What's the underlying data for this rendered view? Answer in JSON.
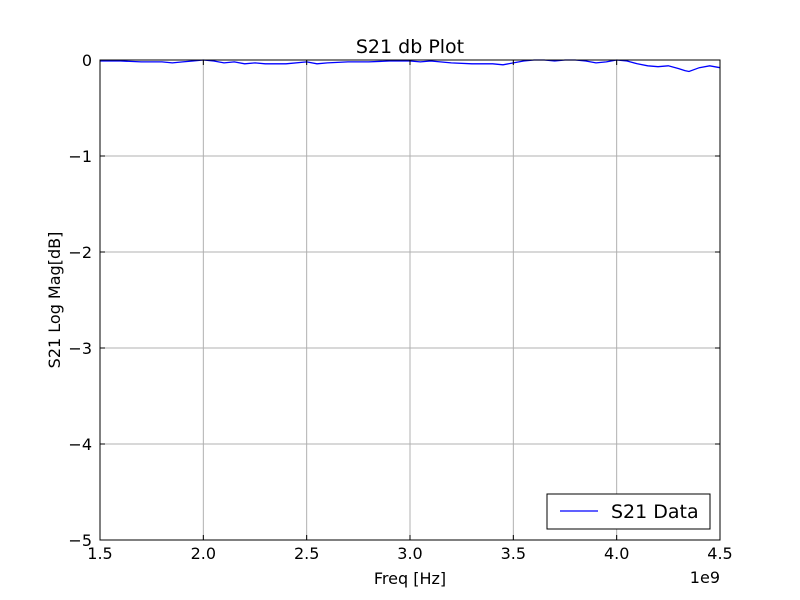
{
  "chart_data": {
    "type": "line",
    "title": "S21 db Plot",
    "xlabel": "Freq [Hz]",
    "ylabel": "S21 Log Mag[dB]",
    "x_multiplier_label": "1e9",
    "xlim": [
      1.5,
      4.5
    ],
    "ylim": [
      -5,
      0
    ],
    "x_ticks": [
      1.5,
      2.0,
      2.5,
      3.0,
      3.5,
      4.0,
      4.5
    ],
    "x_tick_labels": [
      "1.5",
      "2.0",
      "2.5",
      "3.0",
      "3.5",
      "4.0",
      "4.5"
    ],
    "y_ticks": [
      0,
      -1,
      -2,
      -3,
      -4,
      -5
    ],
    "y_tick_labels": [
      "0",
      "−1",
      "−2",
      "−3",
      "−4",
      "−5"
    ],
    "grid": true,
    "legend_position": "lower-right",
    "series": [
      {
        "name": "S21 Data",
        "color": "#0000ff",
        "x": [
          1.5,
          1.6,
          1.7,
          1.8,
          1.85,
          1.9,
          1.95,
          2.0,
          2.05,
          2.1,
          2.15,
          2.2,
          2.25,
          2.3,
          2.4,
          2.5,
          2.55,
          2.6,
          2.7,
          2.8,
          2.9,
          3.0,
          3.05,
          3.1,
          3.2,
          3.3,
          3.4,
          3.45,
          3.5,
          3.55,
          3.6,
          3.65,
          3.7,
          3.75,
          3.8,
          3.85,
          3.9,
          3.95,
          4.0,
          4.05,
          4.1,
          4.15,
          4.2,
          4.25,
          4.3,
          4.33,
          4.35,
          4.4,
          4.45,
          4.5
        ],
        "y": [
          -0.01,
          -0.01,
          -0.02,
          -0.02,
          -0.03,
          -0.02,
          -0.01,
          0.0,
          -0.01,
          -0.03,
          -0.02,
          -0.04,
          -0.03,
          -0.04,
          -0.04,
          -0.02,
          -0.04,
          -0.03,
          -0.02,
          -0.02,
          -0.01,
          -0.01,
          -0.02,
          -0.01,
          -0.03,
          -0.04,
          -0.04,
          -0.05,
          -0.03,
          -0.01,
          0.0,
          0.0,
          -0.01,
          0.0,
          0.0,
          -0.01,
          -0.03,
          -0.02,
          0.0,
          -0.01,
          -0.04,
          -0.06,
          -0.07,
          -0.06,
          -0.09,
          -0.11,
          -0.12,
          -0.08,
          -0.06,
          -0.08
        ]
      }
    ]
  }
}
